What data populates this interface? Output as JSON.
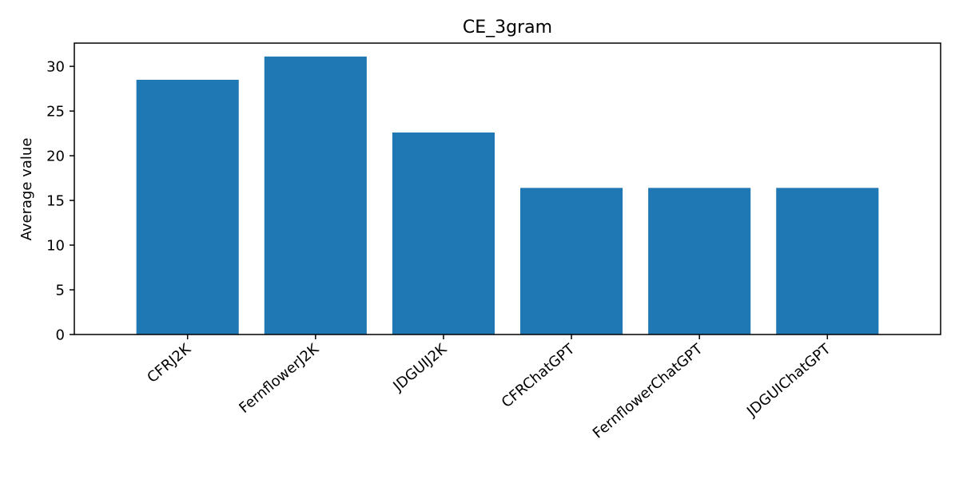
{
  "chart_data": {
    "type": "bar",
    "title": "CE_3gram",
    "xlabel": "",
    "ylabel": "Average value",
    "categories": [
      "CFRJ2K",
      "FernflowerJ2K",
      "JDGUIJ2K",
      "CFRChatGPT",
      "FernflowerChatGPT",
      "JDGUIChatGPT"
    ],
    "values": [
      28.5,
      31.1,
      22.6,
      16.4,
      16.4,
      16.4
    ],
    "ylim": [
      0,
      32.6
    ],
    "yticks": [
      0,
      5,
      10,
      15,
      20,
      25,
      30
    ],
    "bar_color": "#1f77b4",
    "grid": false,
    "legend": "none"
  }
}
